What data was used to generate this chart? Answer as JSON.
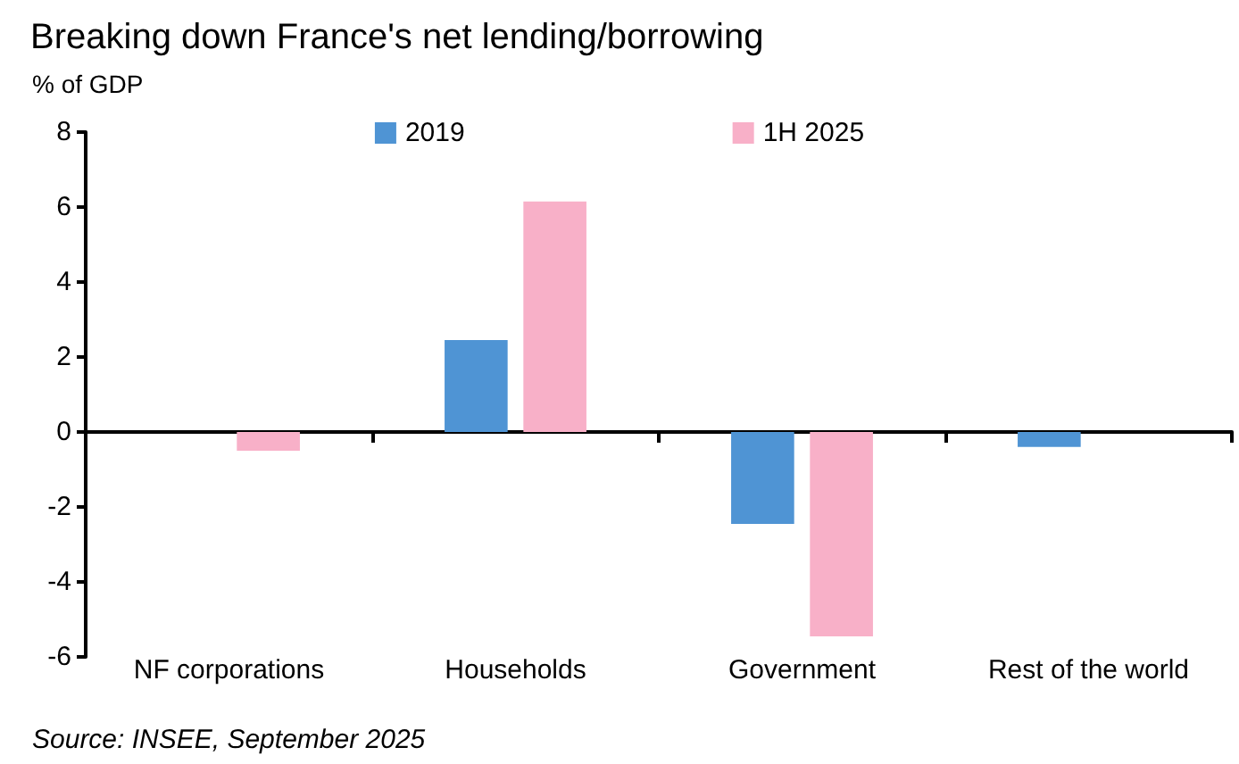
{
  "chart_data": {
    "type": "bar",
    "title": "Breaking down France's net lending/borrowing",
    "ylabel": "% of GDP",
    "annotations": [
      "Source: INSEE, September 2025"
    ],
    "categories": [
      "NF corporations",
      "Households",
      "Government",
      "Rest of the world"
    ],
    "series": [
      {
        "name": "2019",
        "color": "#4f94d4",
        "values": [
          0,
          2.45,
          -2.45,
          -0.4
        ]
      },
      {
        "name": "1H 2025",
        "color": "#f8b0c8",
        "values": [
          -0.5,
          6.15,
          -5.45,
          0
        ]
      }
    ],
    "ylim": [
      -6,
      8
    ],
    "yticks": [
      -6,
      -4,
      -2,
      0,
      2,
      4,
      6,
      8
    ],
    "legend": "top"
  }
}
